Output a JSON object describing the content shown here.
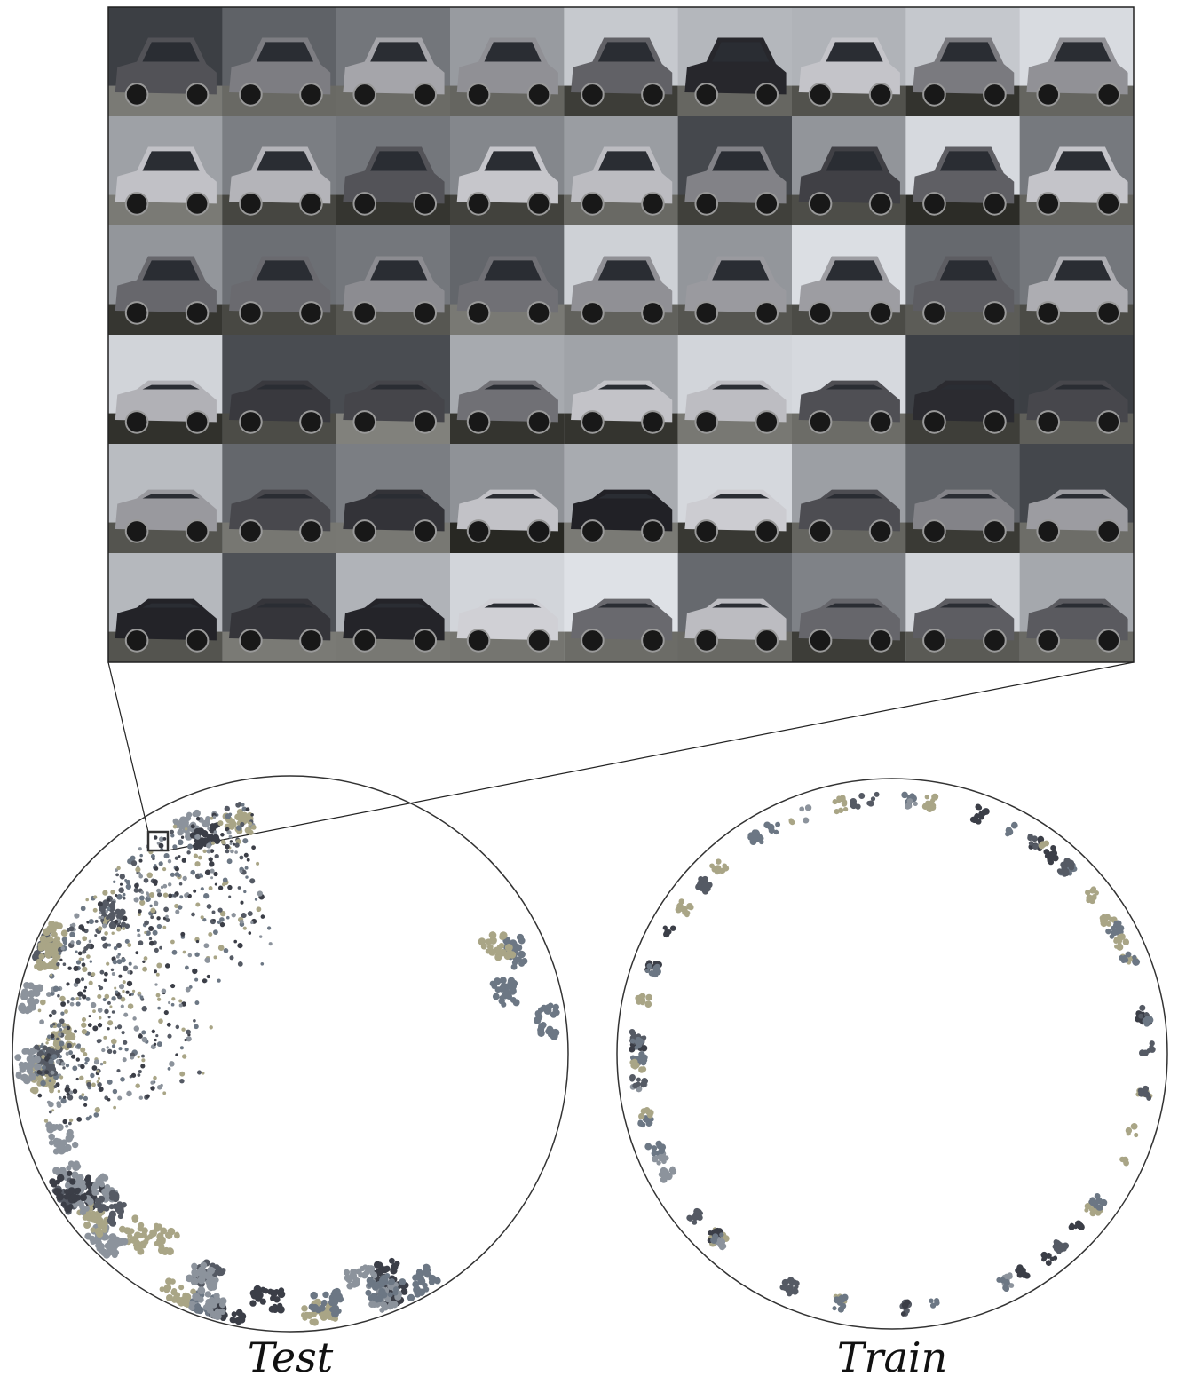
{
  "panels": [
    {
      "caption": "Test"
    },
    {
      "caption": "Train"
    }
  ]
}
